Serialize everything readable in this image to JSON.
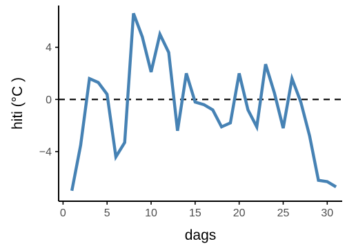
{
  "chart_data": {
    "type": "line",
    "title": "",
    "xlabel": "dags",
    "ylabel": "hiti (°C )",
    "xlim": [
      -0.5,
      31.7
    ],
    "ylim": [
      -7.8,
      7.2
    ],
    "x_ticks": [
      0,
      5,
      10,
      15,
      20,
      25,
      30
    ],
    "x_tick_labels": [
      "0",
      "5",
      "10",
      "15",
      "20",
      "25",
      "30"
    ],
    "y_ticks": [
      4,
      0,
      -4
    ],
    "y_tick_labels": [
      "4",
      "0",
      "−4"
    ],
    "reference_line": {
      "y": 0,
      "style": "dashed",
      "color": "#000000"
    },
    "grid": false,
    "legend": "none",
    "series": [
      {
        "color": "#4682b4",
        "x": [
          1,
          2,
          3,
          4,
          5,
          6,
          7,
          8,
          9,
          10,
          11,
          12,
          13,
          14,
          15,
          16,
          17,
          18,
          19,
          20,
          21,
          22,
          23,
          24,
          25,
          26,
          27,
          28,
          29,
          30,
          31
        ],
        "y": [
          -7.0,
          -3.5,
          1.6,
          1.3,
          0.4,
          -4.4,
          -3.3,
          6.6,
          4.8,
          2.1,
          5.0,
          3.6,
          -2.4,
          2.0,
          -0.2,
          -0.4,
          -0.8,
          -2.1,
          -1.8,
          2.0,
          -0.8,
          -2.1,
          2.7,
          0.5,
          -2.2,
          1.6,
          -0.2,
          -2.8,
          -6.2,
          -6.3,
          -6.7
        ]
      }
    ]
  }
}
